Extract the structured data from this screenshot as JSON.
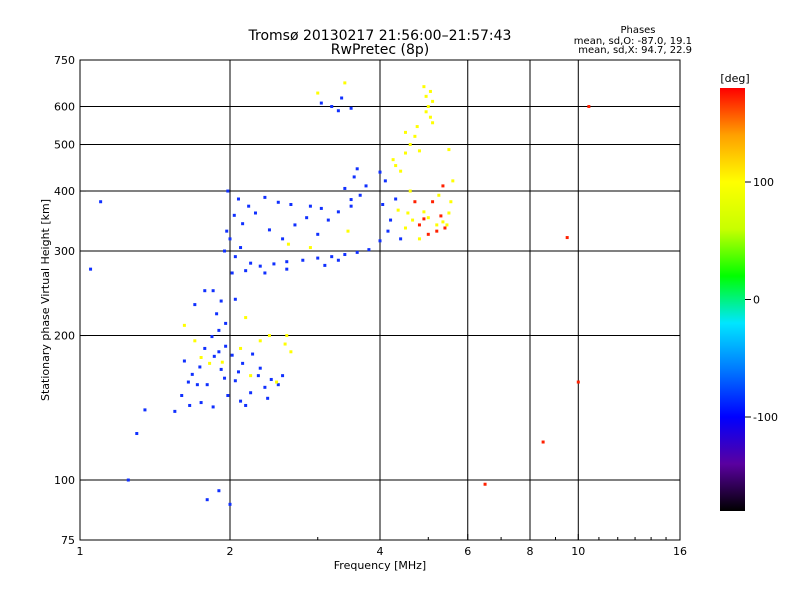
{
  "page": {
    "title_line1": "Tromsø 20130217 21:56:00–21:57:43",
    "title_line2": "RwPretec (8p)",
    "stats_header": "Phases",
    "stats_line1": "mean, sd,O: -87.0, 19.1",
    "stats_line2": "mean, sd,X:  94.7, 22.9"
  },
  "chart_data": {
    "type": "scatter",
    "xlabel": "Frequency [MHz]",
    "ylabel": "Stationary phase Virtual Height [km]",
    "x_scale": "log",
    "y_scale": "log",
    "xlim": [
      1,
      16
    ],
    "ylim": [
      75,
      750
    ],
    "x_ticks": [
      1,
      2,
      4,
      6,
      8,
      10,
      16
    ],
    "y_ticks": [
      75,
      100,
      200,
      300,
      400,
      500,
      600,
      750
    ],
    "x_grid": [
      2,
      4,
      6,
      8,
      10
    ],
    "y_grid": [
      100,
      200,
      300,
      400,
      500,
      600
    ],
    "grid": true,
    "colorbar": {
      "label": "[deg]",
      "range": [
        -180,
        180
      ],
      "ticks": [
        -100,
        0,
        100
      ],
      "colors": [
        "#000000",
        "#5a00a0",
        "#0000ff",
        "#0078ff",
        "#00e6ff",
        "#00ff00",
        "#c8ff00",
        "#ffff00",
        "#ffa000",
        "#ff0000"
      ]
    },
    "series": [
      {
        "points": [
          [
            1.62,
            177
          ],
          [
            1.68,
            166
          ],
          [
            1.74,
            172
          ],
          [
            1.8,
            158
          ],
          [
            1.86,
            181
          ],
          [
            1.92,
            170
          ],
          [
            1.98,
            150
          ],
          [
            2.05,
            161
          ],
          [
            2.12,
            175
          ],
          [
            2.2,
            152
          ],
          [
            2.28,
            165
          ],
          [
            2.38,
            148
          ],
          [
            2.5,
            158
          ],
          [
            1.6,
            150
          ],
          [
            1.66,
            143
          ],
          [
            1.72,
            158
          ],
          [
            1.78,
            188
          ],
          [
            1.84,
            199
          ],
          [
            1.9,
            205
          ],
          [
            1.96,
            190
          ],
          [
            2.02,
            182
          ],
          [
            2.08,
            168
          ],
          [
            2.15,
            143
          ],
          [
            2.22,
            183
          ],
          [
            2.3,
            171
          ],
          [
            2.42,
            162
          ],
          [
            1.55,
            139
          ],
          [
            1.65,
            160
          ],
          [
            1.75,
            145
          ],
          [
            1.85,
            142
          ],
          [
            1.95,
            163
          ],
          [
            2.1,
            146
          ],
          [
            2.35,
            156
          ],
          [
            2.55,
            165
          ],
          [
            1.7,
            232
          ],
          [
            1.78,
            248
          ],
          [
            1.88,
            222
          ],
          [
            1.96,
            212
          ],
          [
            2.05,
            238
          ],
          [
            1.92,
            236
          ],
          [
            1.95,
            300
          ],
          [
            2.0,
            318
          ],
          [
            2.05,
            292
          ],
          [
            2.1,
            305
          ],
          [
            2.2,
            283
          ],
          [
            2.3,
            279
          ],
          [
            2.45,
            282
          ],
          [
            2.6,
            285
          ],
          [
            2.8,
            287
          ],
          [
            3.0,
            290
          ],
          [
            3.2,
            292
          ],
          [
            3.4,
            295
          ],
          [
            3.6,
            298
          ],
          [
            3.8,
            302
          ],
          [
            1.97,
            330
          ],
          [
            2.04,
            356
          ],
          [
            2.12,
            342
          ],
          [
            2.25,
            360
          ],
          [
            2.4,
            332
          ],
          [
            2.55,
            318
          ],
          [
            2.7,
            340
          ],
          [
            2.85,
            352
          ],
          [
            3.0,
            325
          ],
          [
            3.15,
            348
          ],
          [
            3.3,
            362
          ],
          [
            3.5,
            372
          ],
          [
            3.65,
            392
          ],
          [
            3.75,
            410
          ],
          [
            1.98,
            400
          ],
          [
            2.08,
            385
          ],
          [
            2.18,
            372
          ],
          [
            2.35,
            388
          ],
          [
            2.5,
            379
          ],
          [
            2.65,
            375
          ],
          [
            2.9,
            372
          ],
          [
            3.05,
            368
          ],
          [
            3.4,
            405
          ],
          [
            3.55,
            428
          ],
          [
            3.6,
            445
          ],
          [
            3.5,
            384
          ],
          [
            2.02,
            270
          ],
          [
            2.15,
            273
          ],
          [
            2.35,
            270
          ],
          [
            2.6,
            275
          ],
          [
            3.1,
            280
          ],
          [
            3.3,
            287
          ],
          [
            4.0,
            315
          ],
          [
            4.15,
            330
          ],
          [
            4.2,
            348
          ],
          [
            4.05,
            375
          ],
          [
            4.1,
            420
          ],
          [
            4.0,
            438
          ],
          [
            4.3,
            385
          ],
          [
            4.4,
            318
          ],
          [
            3.2,
            600
          ],
          [
            3.35,
            625
          ],
          [
            3.5,
            595
          ],
          [
            3.3,
            588
          ],
          [
            3.05,
            610
          ],
          [
            1.85,
            248
          ],
          [
            1.9,
            185
          ],
          [
            1.9,
            95
          ],
          [
            1.8,
            91
          ],
          [
            2.0,
            89
          ],
          [
            1.35,
            140
          ],
          [
            1.3,
            125
          ],
          [
            1.25,
            100
          ],
          [
            1.05,
            275
          ],
          [
            1.1,
            380
          ]
        ],
        "colors": [
          "#1030ff"
        ]
      },
      {
        "points": [
          [
            1.7,
            195
          ],
          [
            1.82,
            175
          ],
          [
            1.93,
            176
          ],
          [
            2.1,
            188
          ],
          [
            2.3,
            195
          ],
          [
            2.48,
            160
          ],
          [
            1.62,
            210
          ],
          [
            2.58,
            192
          ],
          [
            2.65,
            185
          ],
          [
            2.2,
            165
          ],
          [
            2.62,
            310
          ],
          [
            2.9,
            305
          ],
          [
            3.45,
            330
          ],
          [
            4.35,
            365
          ],
          [
            4.55,
            360
          ],
          [
            4.6,
            400
          ],
          [
            4.4,
            440
          ],
          [
            4.5,
            480
          ],
          [
            4.25,
            465
          ],
          [
            4.7,
            520
          ],
          [
            4.8,
            485
          ],
          [
            4.75,
            545
          ],
          [
            4.6,
            500
          ],
          [
            4.5,
            530
          ],
          [
            4.3,
            452
          ],
          [
            5.05,
            570
          ],
          [
            5.0,
            600
          ],
          [
            4.95,
            630
          ],
          [
            5.1,
            615
          ],
          [
            5.05,
            645
          ],
          [
            4.9,
            660
          ],
          [
            4.95,
            585
          ],
          [
            5.1,
            555
          ],
          [
            5.5,
            360
          ],
          [
            5.55,
            380
          ],
          [
            5.45,
            340
          ],
          [
            5.6,
            420
          ],
          [
            4.5,
            335
          ],
          [
            4.65,
            348
          ],
          [
            4.8,
            318
          ],
          [
            4.9,
            362
          ],
          [
            5.0,
            352
          ],
          [
            5.2,
            340
          ],
          [
            5.35,
            345
          ],
          [
            5.25,
            392
          ],
          [
            2.4,
            200
          ],
          [
            2.6,
            200
          ],
          [
            1.75,
            180
          ],
          [
            2.15,
            218
          ],
          [
            3.0,
            640
          ],
          [
            3.4,
            672
          ],
          [
            5.5,
            488
          ]
        ],
        "colors": [
          "#ffff00"
        ]
      },
      {
        "points": [
          [
            4.9,
            350
          ],
          [
            5.1,
            380
          ],
          [
            5.3,
            355
          ],
          [
            5.2,
            330
          ],
          [
            5.0,
            325
          ],
          [
            4.8,
            340
          ],
          [
            5.35,
            410
          ],
          [
            6.5,
            98
          ],
          [
            8.5,
            120
          ],
          [
            10.0,
            160
          ],
          [
            10.5,
            600
          ],
          [
            9.5,
            320
          ],
          [
            4.7,
            380
          ],
          [
            5.4,
            335
          ]
        ],
        "colors": [
          "#ff2000"
        ]
      }
    ]
  }
}
